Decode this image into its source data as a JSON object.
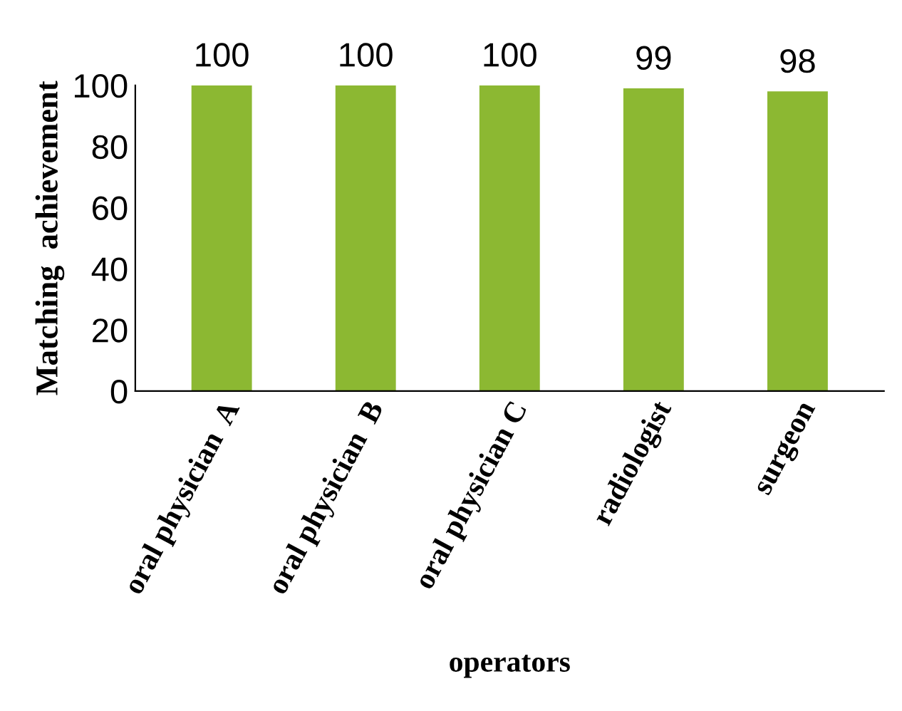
{
  "chart_data": {
    "type": "bar",
    "xlabel": "operators",
    "ylabel": "Matching  achievement",
    "categories": [
      "oral physician  A",
      "oral physician  B",
      "oral physician C",
      "radiologist",
      "surgeon"
    ],
    "values": [
      100,
      100,
      100,
      99,
      98
    ],
    "color": "#8cb832",
    "ylim": [
      0,
      100
    ],
    "yticks": [
      0,
      20,
      40,
      60,
      80,
      100
    ],
    "grid": false,
    "data_labels": true
  }
}
